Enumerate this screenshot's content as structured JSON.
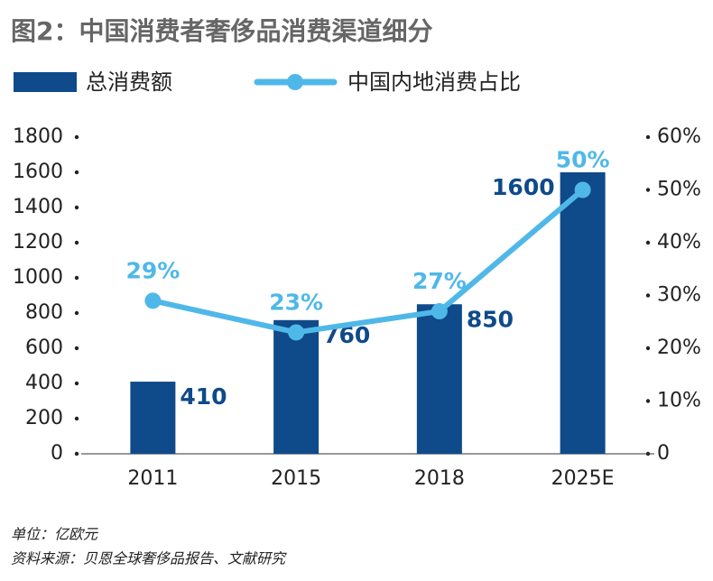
{
  "chart_data": {
    "type": "bar",
    "title": "图2：中国消费者奢侈品消费渠道细分",
    "categories": [
      "2011",
      "2015",
      "2018",
      "2025E"
    ],
    "series": [
      {
        "name": "总消费额",
        "type": "bar",
        "color": "#0f4a8a",
        "values": [
          410,
          760,
          850,
          1600
        ]
      },
      {
        "name": "中国内地消费占比",
        "type": "line",
        "axis": "y2",
        "color": "#4fb8e8",
        "values": [
          29,
          23,
          27,
          50
        ],
        "value_labels": [
          "29%",
          "23%",
          "27%",
          "50%"
        ]
      }
    ],
    "ylim": [
      0,
      1800
    ],
    "yticks": [
      0,
      200,
      400,
      600,
      800,
      1000,
      1200,
      1400,
      1600,
      1800
    ],
    "y2lim": [
      0,
      60
    ],
    "y2ticks": [
      0,
      {
        "value": 10,
        "label": "10%"
      },
      {
        "value": 20,
        "label": "20%"
      },
      {
        "value": 30,
        "label": "30%"
      },
      {
        "value": 40,
        "label": "40%"
      },
      {
        "value": 50,
        "label": "50%"
      },
      {
        "value": 60,
        "label": "60%"
      }
    ],
    "unit_note": "单位：亿欧元",
    "source": "资料来源：贝恩全球奢侈品报告、文献研究"
  }
}
